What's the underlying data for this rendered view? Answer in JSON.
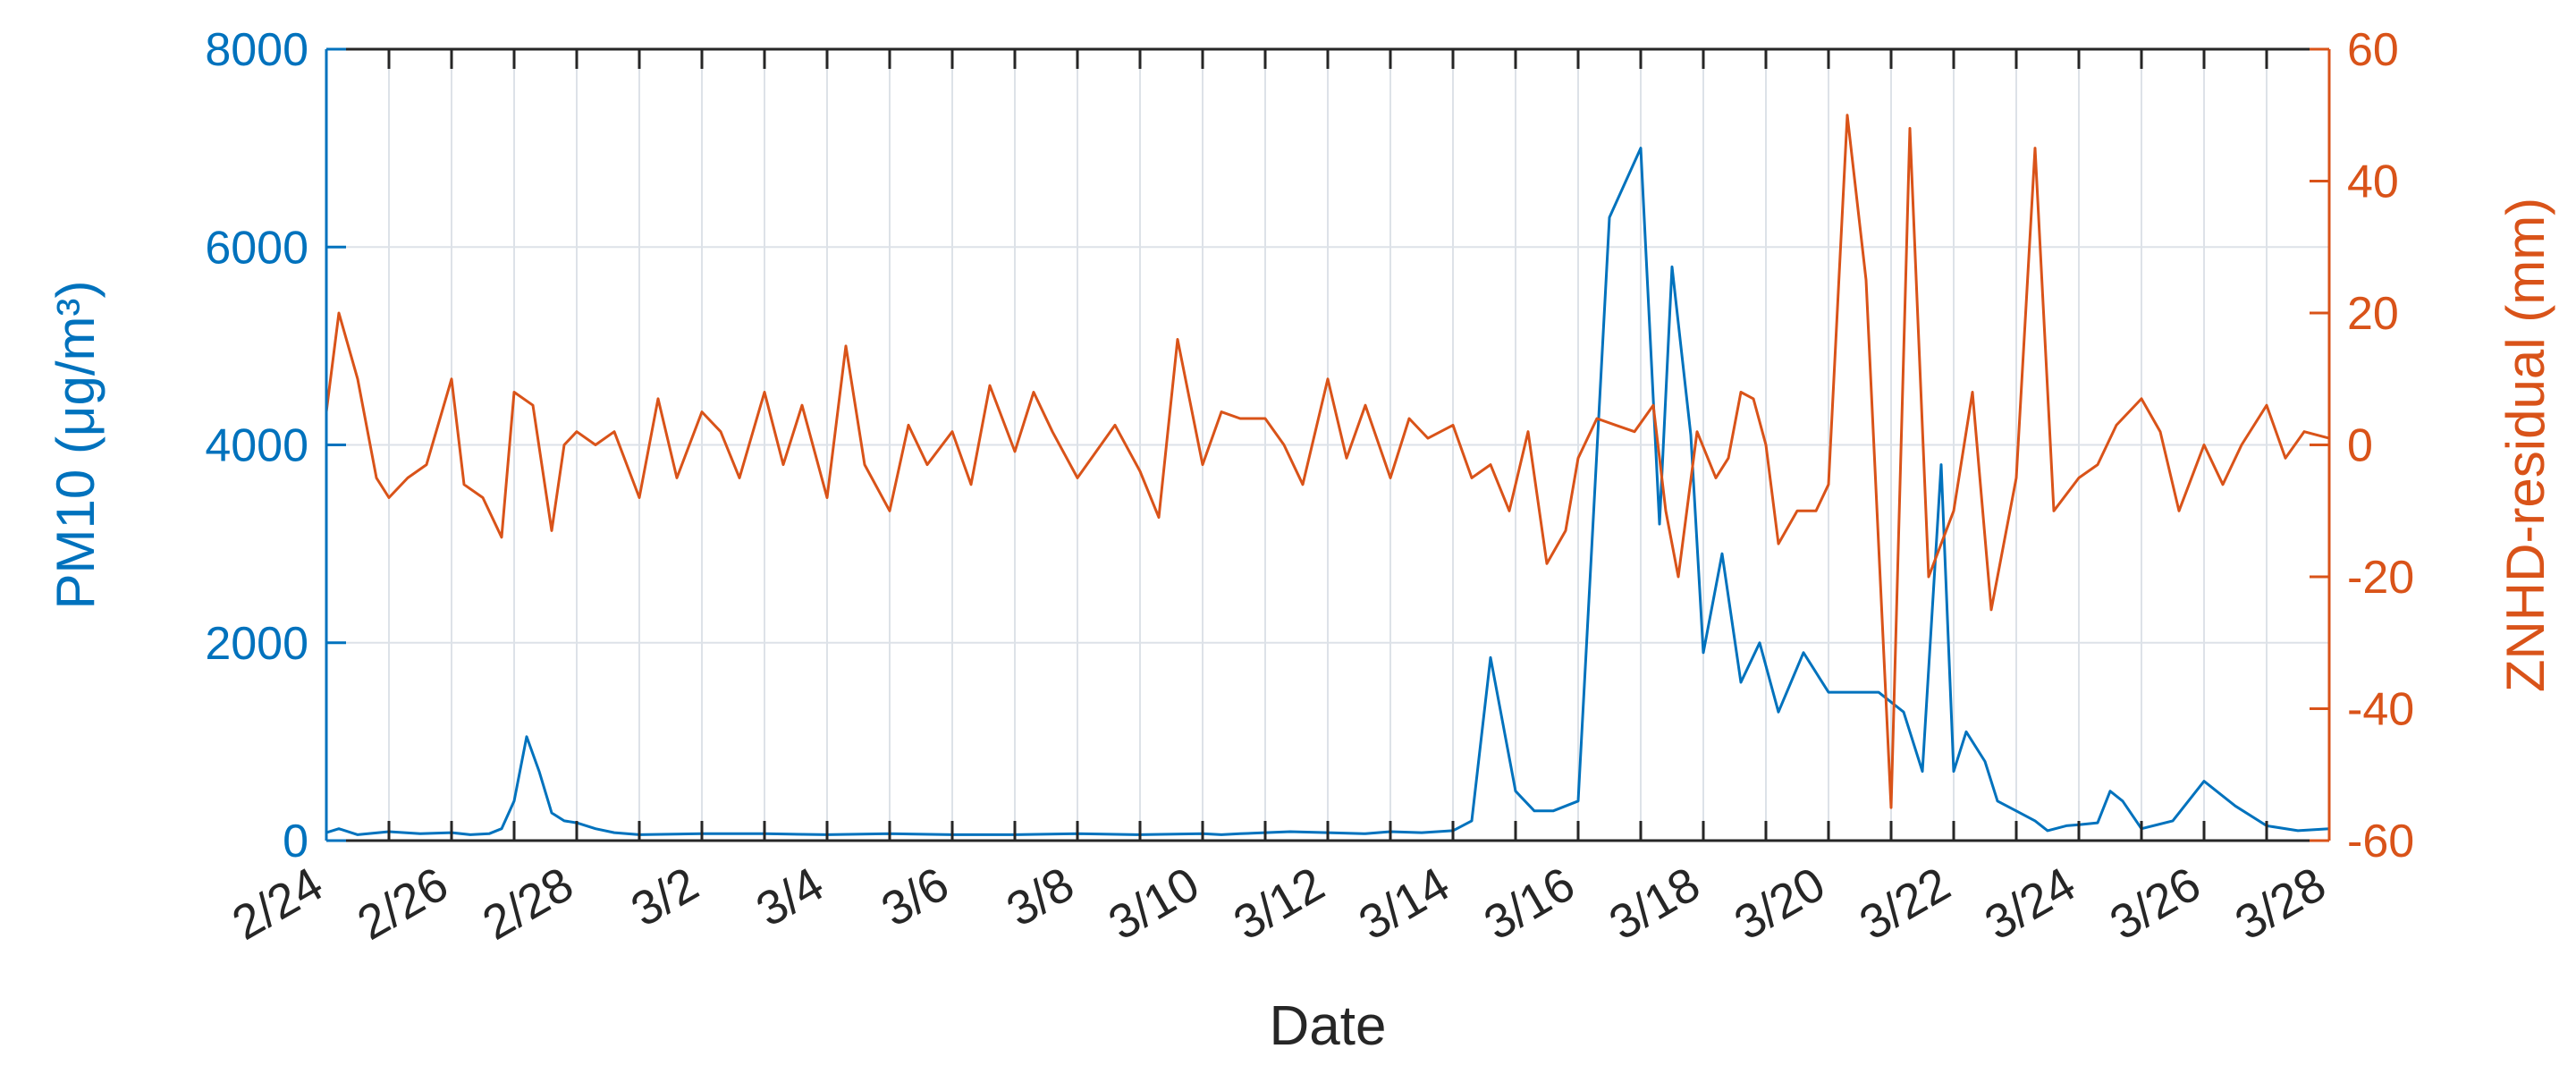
{
  "chart_data": {
    "type": "line",
    "title": "",
    "xlabel": "Date",
    "ylabel_left": "PM10 (μg/m³)",
    "ylabel_right": "ZNHD-residual (mm)",
    "x_start_label": "2/24",
    "x_tick_labels": [
      "2/24",
      "2/26",
      "2/28",
      "3/2",
      "3/4",
      "3/6",
      "3/8",
      "3/10",
      "3/12",
      "3/14",
      "3/16",
      "3/18",
      "3/20",
      "3/22",
      "3/24",
      "3/26",
      "3/28"
    ],
    "xlim_days": [
      0,
      32
    ],
    "ylim_left": [
      0,
      8000
    ],
    "yticks_left": [
      0,
      2000,
      4000,
      6000,
      8000
    ],
    "ylim_right": [
      -60,
      60
    ],
    "yticks_right": [
      -60,
      -40,
      -20,
      0,
      20,
      40,
      60
    ],
    "grid": true,
    "legend": "none",
    "colors": {
      "left": "#0072BD",
      "right": "#D95319",
      "axis": "#262626",
      "grid": "#DDE2E8"
    },
    "series": [
      {
        "axis": "left",
        "name": "PM10 (μg/m³)",
        "x_days": [
          0,
          0.2,
          0.5,
          1.0,
          1.5,
          2.0,
          2.3,
          2.6,
          2.8,
          3.0,
          3.2,
          3.4,
          3.6,
          3.8,
          4.0,
          4.3,
          4.6,
          5.0,
          6.0,
          7.0,
          8.0,
          9.0,
          10.0,
          11.0,
          12.0,
          13.0,
          14.0,
          14.3,
          14.6,
          15.0,
          15.4,
          16.0,
          16.6,
          17.0,
          17.5,
          18.0,
          18.3,
          18.6,
          19.0,
          19.3,
          19.6,
          20.0,
          20.5,
          21.0,
          21.3,
          21.5,
          21.8,
          22.0,
          22.3,
          22.6,
          22.9,
          23.2,
          23.6,
          24.0,
          24.4,
          24.8,
          25.2,
          25.5,
          25.8,
          26.0,
          26.2,
          26.5,
          26.7,
          27.0,
          27.3,
          27.5,
          27.8,
          28.0,
          28.3,
          28.5,
          28.7,
          29.0,
          29.5,
          30.0,
          30.5,
          31.0,
          31.5,
          32.0
        ],
        "values": [
          80,
          120,
          60,
          90,
          70,
          80,
          60,
          70,
          120,
          400,
          1050,
          700,
          280,
          200,
          180,
          120,
          80,
          60,
          70,
          70,
          60,
          70,
          60,
          60,
          70,
          60,
          70,
          60,
          70,
          80,
          90,
          80,
          70,
          90,
          80,
          100,
          200,
          1850,
          500,
          300,
          300,
          400,
          6300,
          7000,
          3200,
          5800,
          4100,
          1900,
          2900,
          1600,
          2000,
          1300,
          1900,
          1500,
          1500,
          1500,
          1300,
          700,
          3800,
          700,
          1100,
          800,
          400,
          300,
          200,
          100,
          150,
          160,
          180,
          500,
          400,
          120,
          200,
          600,
          350,
          150,
          100,
          120
        ]
      },
      {
        "axis": "right",
        "name": "ZNHD-residual (mm)",
        "x_days": [
          0,
          0.2,
          0.5,
          0.8,
          1.0,
          1.3,
          1.6,
          2.0,
          2.2,
          2.5,
          2.8,
          3.0,
          3.3,
          3.6,
          3.8,
          4.0,
          4.3,
          4.6,
          5.0,
          5.3,
          5.6,
          6.0,
          6.3,
          6.6,
          7.0,
          7.3,
          7.6,
          8.0,
          8.3,
          8.6,
          9.0,
          9.3,
          9.6,
          10.0,
          10.3,
          10.6,
          11.0,
          11.3,
          11.6,
          12.0,
          12.3,
          12.6,
          13.0,
          13.3,
          13.6,
          14.0,
          14.3,
          14.6,
          15.0,
          15.3,
          15.6,
          16.0,
          16.3,
          16.6,
          17.0,
          17.3,
          17.6,
          18.0,
          18.3,
          18.6,
          18.9,
          19.2,
          19.5,
          19.8,
          20.0,
          20.3,
          20.6,
          20.9,
          21.2,
          21.4,
          21.6,
          21.9,
          22.2,
          22.4,
          22.6,
          22.8,
          23.0,
          23.2,
          23.5,
          23.8,
          24.0,
          24.3,
          24.6,
          25.0,
          25.3,
          25.6,
          26.0,
          26.3,
          26.6,
          27.0,
          27.3,
          27.6,
          28.0,
          28.3,
          28.6,
          29.0,
          29.3,
          29.6,
          30.0,
          30.3,
          30.6,
          31.0,
          31.3,
          31.6,
          32.0
        ],
        "values": [
          5,
          20,
          10,
          -5,
          -8,
          -5,
          -3,
          10,
          -6,
          -8,
          -14,
          8,
          6,
          -13,
          0,
          2,
          0,
          2,
          -8,
          7,
          -5,
          5,
          2,
          -5,
          8,
          -3,
          6,
          -8,
          15,
          -3,
          -10,
          3,
          -3,
          2,
          -6,
          9,
          -1,
          8,
          2,
          -5,
          -1,
          3,
          -4,
          -11,
          16,
          -3,
          5,
          4,
          4,
          0,
          -6,
          10,
          -2,
          6,
          -5,
          4,
          1,
          3,
          -5,
          -3,
          -10,
          2,
          -18,
          -13,
          -2,
          4,
          3,
          2,
          6,
          -10,
          -20,
          2,
          -5,
          -2,
          8,
          7,
          0,
          -15,
          -10,
          -10,
          -6,
          50,
          25,
          -55,
          48,
          -20,
          -10,
          8,
          -25,
          -5,
          45,
          -10,
          -5,
          -3,
          3,
          7,
          2,
          -10,
          0,
          -6,
          0,
          6,
          -2,
          2,
          1
        ]
      }
    ]
  }
}
